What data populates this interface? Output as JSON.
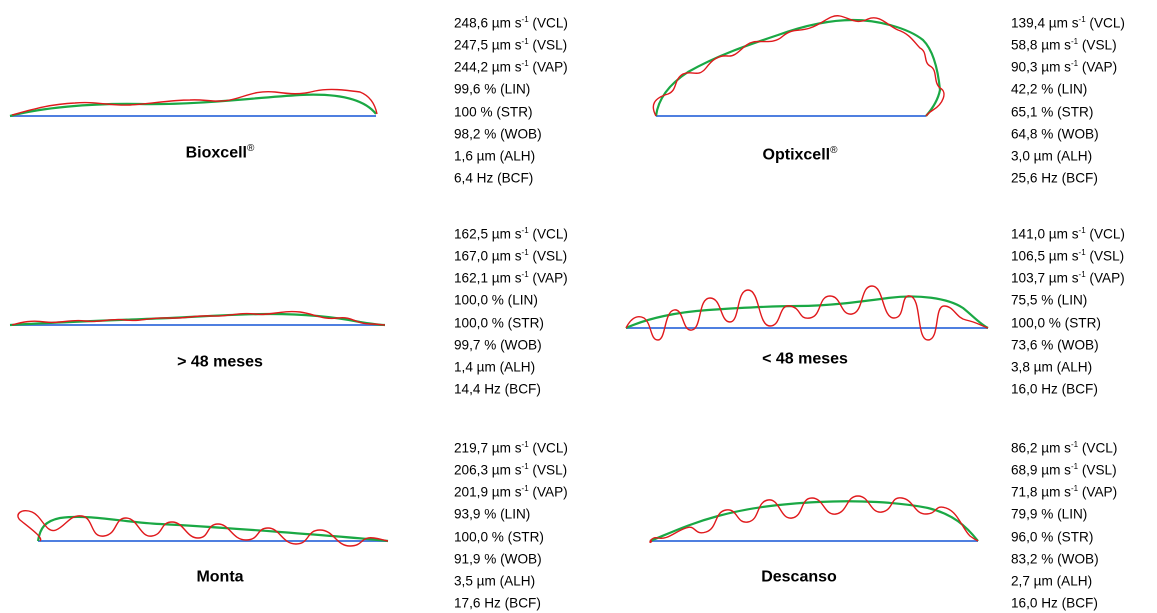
{
  "colors": {
    "vcl": "#e0191c",
    "vap": "#1aa844",
    "vsl": "#4f7fe0"
  },
  "panels": [
    {
      "id": "bioxcell",
      "title": "Bioxcell",
      "title_sup": "®",
      "metrics": [
        {
          "value": "248,6 µm s",
          "sup": "-1",
          "tag": " (VCL)"
        },
        {
          "value": "247,5 µm s",
          "sup": "-1",
          "tag": " (VSL)"
        },
        {
          "value": "244,2 µm s",
          "sup": "-1",
          "tag": " (VAP)"
        },
        {
          "value": "99,6 %",
          "sup": "",
          "tag": " (LIN)"
        },
        {
          "value": "100 %",
          "sup": "",
          "tag": " (STR)"
        },
        {
          "value": "98,2 %",
          "sup": "",
          "tag": " (WOB)"
        },
        {
          "value": "1,6 µm",
          "sup": "",
          "tag": " (ALH)"
        },
        {
          "value": "6,4 Hz",
          "sup": "",
          "tag": " (BCF)"
        }
      ]
    },
    {
      "id": "optixcell",
      "title": "Optixcell",
      "title_sup": "®",
      "metrics": [
        {
          "value": "139,4 µm s",
          "sup": "-1",
          "tag": " (VCL)"
        },
        {
          "value": "58,8 µm s",
          "sup": "-1",
          "tag": " (VSL)"
        },
        {
          "value": "90,3 µm s",
          "sup": "-1",
          "tag": " (VAP)"
        },
        {
          "value": "42,2 %",
          "sup": "",
          "tag": " (LIN)"
        },
        {
          "value": "65,1 %",
          "sup": "",
          "tag": " (STR)"
        },
        {
          "value": "64,8 %",
          "sup": "",
          "tag": " (WOB)"
        },
        {
          "value": "3,0 µm",
          "sup": "",
          "tag": " (ALH)"
        },
        {
          "value": "25,6 Hz",
          "sup": "",
          "tag": " (BCF)"
        }
      ]
    },
    {
      "id": "over48",
      "title": "> 48 meses",
      "title_sup": "",
      "metrics": [
        {
          "value": "162,5 µm s",
          "sup": "-1",
          "tag": " (VCL)"
        },
        {
          "value": "167,0 µm s",
          "sup": "-1",
          "tag": " (VSL)"
        },
        {
          "value": "162,1 µm s",
          "sup": "-1",
          "tag": " (VAP)"
        },
        {
          "value": "100,0 %",
          "sup": "",
          "tag": " (LIN)"
        },
        {
          "value": "100,0 %",
          "sup": "",
          "tag": " (STR)"
        },
        {
          "value": "99,7 %",
          "sup": "",
          "tag": " (WOB)"
        },
        {
          "value": "1,4 µm",
          "sup": "",
          "tag": " (ALH)"
        },
        {
          "value": "14,4 Hz",
          "sup": "",
          "tag": " (BCF)"
        }
      ]
    },
    {
      "id": "under48",
      "title": "< 48 meses",
      "title_sup": "",
      "metrics": [
        {
          "value": "141,0 µm s",
          "sup": "-1",
          "tag": " (VCL)"
        },
        {
          "value": "106,5 µm s",
          "sup": "-1",
          "tag": " (VSL)"
        },
        {
          "value": "103,7 µm s",
          "sup": "-1",
          "tag": " (VAP)"
        },
        {
          "value": "75,5 %",
          "sup": "",
          "tag": " (LIN)"
        },
        {
          "value": "100,0 %",
          "sup": "",
          "tag": " (STR)"
        },
        {
          "value": "73,6 %",
          "sup": "",
          "tag": " (WOB)"
        },
        {
          "value": "3,8 µm",
          "sup": "",
          "tag": " (ALH)"
        },
        {
          "value": "16,0 Hz",
          "sup": "",
          "tag": " (BCF)"
        }
      ]
    },
    {
      "id": "monta",
      "title": "Monta",
      "title_sup": "",
      "metrics": [
        {
          "value": "219,7 µm s",
          "sup": "-1",
          "tag": " (VCL)"
        },
        {
          "value": "206,3 µm s",
          "sup": "-1",
          "tag": " (VSL)"
        },
        {
          "value": "201,9 µm s",
          "sup": "-1",
          "tag": " (VAP)"
        },
        {
          "value": "93,9 %",
          "sup": "",
          "tag": " (LIN)"
        },
        {
          "value": "100,0 %",
          "sup": "",
          "tag": " (STR)"
        },
        {
          "value": "91,9 %",
          "sup": "",
          "tag": " (WOB)"
        },
        {
          "value": "3,5 µm",
          "sup": "",
          "tag": " (ALH)"
        },
        {
          "value": "17,6 Hz",
          "sup": "",
          "tag": " (BCF)"
        }
      ]
    },
    {
      "id": "descanso",
      "title": "Descanso",
      "title_sup": "",
      "metrics": [
        {
          "value": "86,2 µm s",
          "sup": "-1",
          "tag": " (VCL)"
        },
        {
          "value": "68,9 µm s",
          "sup": "-1",
          "tag": " (VSL)"
        },
        {
          "value": "71,8 µm s",
          "sup": "-1",
          "tag": " (VAP)"
        },
        {
          "value": "79,9 %",
          "sup": "",
          "tag": " (LIN)"
        },
        {
          "value": "96,0 %",
          "sup": "",
          "tag": " (STR)"
        },
        {
          "value": "83,2 %",
          "sup": "",
          "tag": " (WOB)"
        },
        {
          "value": "2,7 µm",
          "sup": "",
          "tag": " (ALH)"
        },
        {
          "value": "16,0 Hz",
          "sup": "",
          "tag": " (BCF)"
        }
      ]
    }
  ]
}
